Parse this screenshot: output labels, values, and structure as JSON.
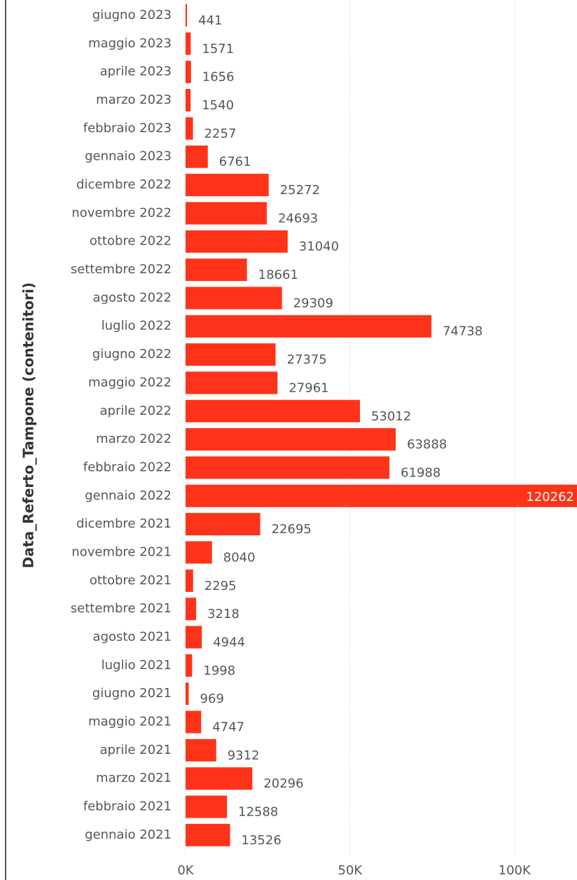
{
  "chart_data": {
    "type": "bar",
    "orientation": "horizontal",
    "y_axis_label": "Data_Referto_Tampone (contenitori)",
    "categories": [
      "giugno 2023",
      "maggio 2023",
      "aprile 2023",
      "marzo 2023",
      "febbraio 2023",
      "gennaio 2023",
      "dicembre 2022",
      "novembre 2022",
      "ottobre 2022",
      "settembre 2022",
      "agosto 2022",
      "luglio 2022",
      "giugno 2022",
      "maggio 2022",
      "aprile 2022",
      "marzo 2022",
      "febbraio 2022",
      "gennaio 2022",
      "dicembre 2021",
      "novembre 2021",
      "ottobre 2021",
      "settembre 2021",
      "agosto 2021",
      "luglio 2021",
      "giugno 2021",
      "maggio 2021",
      "aprile 2021",
      "marzo 2021",
      "febbraio 2021",
      "gennaio 2021"
    ],
    "values": [
      441,
      1571,
      1656,
      1540,
      2257,
      6761,
      25272,
      24693,
      31040,
      18661,
      29309,
      74738,
      27375,
      27961,
      53012,
      63888,
      61988,
      120262,
      22695,
      8040,
      2295,
      3218,
      4944,
      1998,
      969,
      4747,
      9312,
      20296,
      12588,
      13526
    ],
    "color": "#ff3319",
    "xlim": [
      0,
      119000
    ],
    "xticks": [
      {
        "value": 0,
        "label": "0K"
      },
      {
        "value": 50000,
        "label": "50K"
      },
      {
        "value": 100000,
        "label": "100K"
      }
    ],
    "grid": true
  }
}
